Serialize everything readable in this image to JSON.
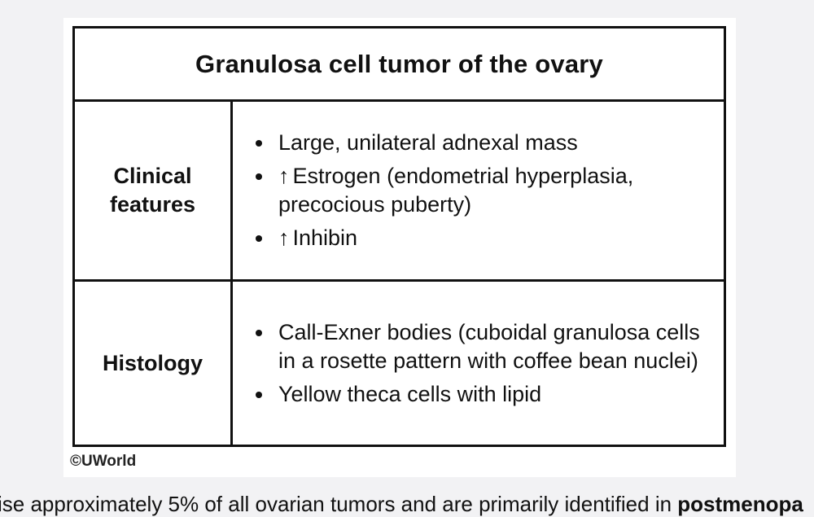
{
  "table": {
    "title": "Granulosa cell tumor of the ovary",
    "rows": [
      {
        "label": "Clinical features",
        "items": [
          {
            "arrow": "",
            "text": "Large, unilateral adnexal mass"
          },
          {
            "arrow": "↑",
            "text": "Estrogen (endometrial hyperplasia, precocious puberty)"
          },
          {
            "arrow": "↑",
            "text": "Inhibin"
          }
        ]
      },
      {
        "label": "Histology",
        "items": [
          {
            "arrow": "",
            "text": "Call-Exner bodies (cuboidal granulosa cells in a rosette pattern with coffee bean nuclei)"
          },
          {
            "arrow": "",
            "text": "Yellow theca cells with lipid"
          }
        ]
      }
    ]
  },
  "copyright": "©UWorld",
  "body_text": {
    "visible_plain": "ise approximately 5% of all ovarian tumors and are primarily identified in ",
    "visible_bold": "postmenopa"
  }
}
